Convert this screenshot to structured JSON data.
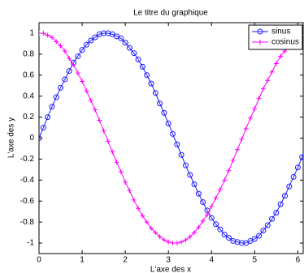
{
  "chart_data": {
    "type": "line",
    "title": "Le titre du graphique",
    "xlabel": "L'axe des x",
    "ylabel": "L'axe des y",
    "x": [
      0,
      0.1,
      0.2,
      0.3,
      0.4,
      0.5,
      0.6,
      0.7,
      0.8,
      0.9,
      1.0,
      1.1,
      1.2,
      1.3,
      1.4,
      1.5,
      1.6,
      1.7,
      1.8,
      1.9,
      2.0,
      2.1,
      2.2,
      2.3,
      2.4,
      2.5,
      2.6,
      2.7,
      2.8,
      2.9,
      3.0,
      3.1,
      3.2,
      3.3,
      3.4,
      3.5,
      3.6,
      3.7,
      3.8,
      3.9,
      4.0,
      4.1,
      4.2,
      4.3,
      4.4,
      4.5,
      4.6,
      4.7,
      4.8,
      4.9,
      5.0,
      5.1,
      5.2,
      5.3,
      5.4,
      5.5,
      5.6,
      5.7,
      5.8,
      5.9,
      6.0,
      6.1,
      6.2
    ],
    "series": [
      {
        "name": "sinus",
        "color": "#1a1aff",
        "marker": "circle",
        "values": [
          0,
          0.1,
          0.2,
          0.3,
          0.39,
          0.48,
          0.56,
          0.64,
          0.72,
          0.78,
          0.84,
          0.89,
          0.93,
          0.96,
          0.99,
          1.0,
          1.0,
          0.99,
          0.97,
          0.95,
          0.91,
          0.86,
          0.81,
          0.75,
          0.68,
          0.6,
          0.52,
          0.43,
          0.33,
          0.24,
          0.14,
          0.04,
          -0.06,
          -0.16,
          -0.26,
          -0.35,
          -0.44,
          -0.53,
          -0.61,
          -0.69,
          -0.76,
          -0.82,
          -0.87,
          -0.92,
          -0.95,
          -0.98,
          -0.99,
          -1.0,
          -1.0,
          -0.98,
          -0.96,
          -0.93,
          -0.88,
          -0.83,
          -0.77,
          -0.71,
          -0.63,
          -0.55,
          -0.46,
          -0.37,
          -0.28,
          -0.18,
          -0.08
        ]
      },
      {
        "name": "cosinus",
        "color": "#ff00ff",
        "marker": "plus",
        "values": [
          1.0,
          1.0,
          0.98,
          0.96,
          0.92,
          0.88,
          0.83,
          0.76,
          0.7,
          0.62,
          0.54,
          0.45,
          0.36,
          0.27,
          0.17,
          0.07,
          -0.03,
          -0.13,
          -0.23,
          -0.32,
          -0.42,
          -0.5,
          -0.59,
          -0.67,
          -0.74,
          -0.8,
          -0.86,
          -0.9,
          -0.94,
          -0.97,
          -0.99,
          -1.0,
          -1.0,
          -0.99,
          -0.97,
          -0.94,
          -0.9,
          -0.85,
          -0.79,
          -0.73,
          -0.65,
          -0.57,
          -0.49,
          -0.4,
          -0.31,
          -0.21,
          -0.11,
          -0.01,
          0.09,
          0.19,
          0.28,
          0.38,
          0.47,
          0.55,
          0.63,
          0.71,
          0.78,
          0.83,
          0.89,
          0.93,
          0.96,
          0.98,
          1.0
        ]
      }
    ],
    "xlim": [
      0,
      6.2
    ],
    "xticks": [
      0,
      1,
      2,
      3,
      4,
      5,
      6
    ],
    "ylim": [
      -1.1,
      1.1
    ],
    "yticks": [
      -1,
      -0.8,
      -0.6,
      -0.4,
      -0.2,
      0,
      0.2,
      0.4,
      0.6,
      0.8,
      1
    ],
    "legend": "top-right"
  }
}
